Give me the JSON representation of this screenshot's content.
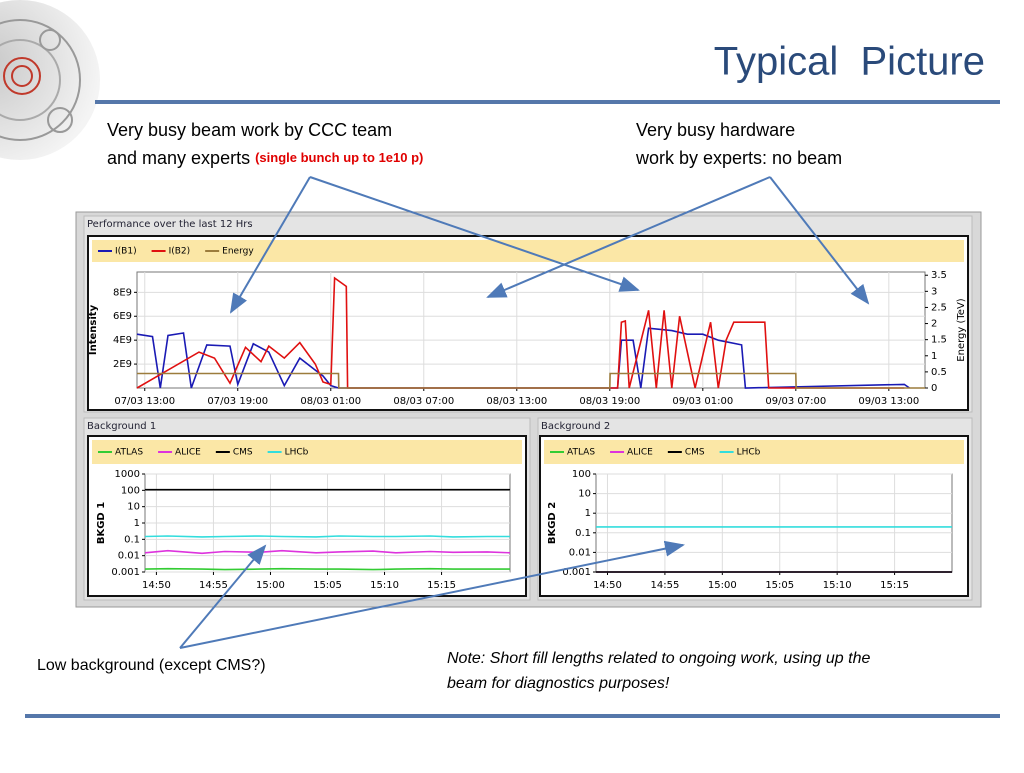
{
  "slide": {
    "title": "Typical  Picture",
    "annotation_left_line1": "Very busy beam work by CCC team",
    "annotation_left_line2": "and many experts ",
    "annotation_left_note": "(single bunch up to 1e10 p)",
    "annotation_right_line1": "Very busy hardware",
    "annotation_right_line2": "work by experts: no beam",
    "annotation_bottom": "Low background (except CMS?)",
    "note_line1": "Note: Short fill lengths related to ongoing work, using up the",
    "note_line2": "beam for diagnostics purposes!"
  },
  "chart_data": [
    {
      "type": "line",
      "title": "Performance over the last 12 Hrs",
      "y_label": "Intensity",
      "y2_label": "Energy (TeV)",
      "xlim": [
        "07/03 12:30",
        "09/03 15:20"
      ],
      "xticks": [
        "07/03 13:00",
        "07/03 19:00",
        "08/03 01:00",
        "08/03 07:00",
        "08/03 13:00",
        "08/03 19:00",
        "09/03 01:00",
        "09/03 07:00",
        "09/03 13:00"
      ],
      "ylim": [
        0,
        9700000000.0
      ],
      "yticks": [
        {
          "value": 2000000000.0,
          "label": "2E9"
        },
        {
          "value": 4000000000.0,
          "label": "4E9"
        },
        {
          "value": 6000000000.0,
          "label": "6E9"
        },
        {
          "value": 8000000000.0,
          "label": "8E9"
        }
      ],
      "y2lim": [
        0,
        3.6
      ],
      "y2ticks": [
        0,
        0.5,
        1,
        1.5,
        2,
        2.5,
        3,
        3.5
      ],
      "grid": true,
      "series": [
        {
          "name": "I(B1)",
          "color": "#1a1ab4",
          "x": [
            "07/03 12:30",
            "07/03 13:30",
            "07/03 14:00",
            "07/03 14:30",
            "07/03 15:30",
            "07/03 16:00",
            "07/03 17:00",
            "07/03 18:30",
            "07/03 19:00",
            "07/03 20:00",
            "07/03 21:00",
            "07/03 22:00",
            "07/03 23:00",
            "08/03 00:00",
            "08/03 00:30",
            "08/03 01:00",
            "08/03 01:30",
            "08/03 19:30",
            "08/03 19:45",
            "08/03 20:30",
            "08/03 21:00",
            "08/03 21:30",
            "08/03 23:00",
            "09/03 00:00",
            "09/03 01:00",
            "09/03 02:00",
            "09/03 03:30",
            "09/03 03:45",
            "09/03 14:00",
            "09/03 14:20"
          ],
          "values": [
            4500000000.0,
            4300000000.0,
            0,
            4400000000.0,
            4600000000.0,
            0,
            3600000000.0,
            3500000000.0,
            300000000.0,
            3700000000.0,
            3000000000.0,
            200000000.0,
            2500000000.0,
            1500000000.0,
            1000000000.0,
            200000000.0,
            0,
            0,
            4000000000.0,
            4000000000.0,
            0,
            5000000000.0,
            4800000000.0,
            4500000000.0,
            4500000000.0,
            4000000000.0,
            3600000000.0,
            0,
            300000000.0,
            0
          ]
        },
        {
          "name": "I(B2)",
          "color": "#e01010",
          "x": [
            "07/03 12:30",
            "07/03 16:30",
            "07/03 17:30",
            "07/03 18:30",
            "07/03 19:30",
            "07/03 20:30",
            "07/03 21:00",
            "07/03 22:00",
            "07/03 23:00",
            "08/03 00:00",
            "08/03 00:30",
            "08/03 01:00",
            "08/03 01:15",
            "08/03 02:00",
            "08/03 02:05",
            "08/03 19:30",
            "08/03 19:45",
            "08/03 20:00",
            "08/03 20:15",
            "08/03 21:30",
            "08/03 22:00",
            "08/03 22:30",
            "08/03 23:00",
            "08/03 23:30",
            "09/03 00:30",
            "09/03 01:30",
            "09/03 02:00",
            "09/03 02:30",
            "09/03 03:00",
            "09/03 05:00",
            "09/03 05:15",
            "09/03 14:00"
          ],
          "values": [
            0,
            3000000000.0,
            2500000000.0,
            400000000.0,
            3400000000.0,
            2200000000.0,
            3500000000.0,
            2500000000.0,
            3800000000.0,
            2000000000.0,
            500000000.0,
            300000000.0,
            9200000000.0,
            8500000000.0,
            0,
            0,
            5500000000.0,
            5600000000.0,
            0,
            6500000000.0,
            0,
            6500000000.0,
            0,
            6000000000.0,
            0,
            5500000000.0,
            0,
            4000000000.0,
            5500000000.0,
            5500000000.0,
            0,
            0
          ]
        },
        {
          "name": "Energy",
          "color": "#9c7c3c",
          "axis": "y2",
          "x": [
            "07/03 12:30",
            "08/03 01:30",
            "08/03 01:31",
            "08/03 19:00",
            "08/03 19:01",
            "09/03 07:00",
            "09/03 07:01",
            "09/03 15:20"
          ],
          "values": [
            0.45,
            0.45,
            0,
            0,
            0.45,
            0.45,
            0,
            0
          ]
        }
      ]
    },
    {
      "type": "line",
      "title": "Background 1",
      "y_label": "BKGD 1",
      "log_y": true,
      "xlim": [
        "14:49",
        "15:21"
      ],
      "xticks": [
        "14:50",
        "14:55",
        "15:00",
        "15:05",
        "15:10",
        "15:15"
      ],
      "ylim": [
        0.001,
        1000
      ],
      "yticks": [
        0.001,
        0.01,
        0.1,
        1,
        10,
        100,
        1000
      ],
      "grid": true,
      "x": [
        "14:49",
        "14:51",
        "14:54",
        "14:56",
        "14:59",
        "15:01",
        "15:04",
        "15:06",
        "15:09",
        "15:11",
        "15:14",
        "15:16",
        "15:19",
        "15:21"
      ],
      "series": [
        {
          "name": "ATLAS",
          "color": "#33cc33",
          "values": [
            0.0015,
            0.0016,
            0.0015,
            0.0014,
            0.0015,
            0.0016,
            0.0015,
            0.0015,
            0.0014,
            0.0015,
            0.0016,
            0.0015,
            0.0015,
            0.0015
          ]
        },
        {
          "name": "ALICE",
          "color": "#dd33dd",
          "values": [
            0.015,
            0.02,
            0.014,
            0.018,
            0.016,
            0.02,
            0.015,
            0.017,
            0.019,
            0.015,
            0.018,
            0.016,
            0.017,
            0.015
          ]
        },
        {
          "name": "CMS",
          "color": "#000000",
          "values": [
            110,
            110,
            110,
            110,
            110,
            110,
            110,
            110,
            110,
            110,
            110,
            110,
            110,
            110
          ]
        },
        {
          "name": "LHCb",
          "color": "#33dddd",
          "values": [
            0.15,
            0.16,
            0.14,
            0.15,
            0.16,
            0.15,
            0.14,
            0.16,
            0.15,
            0.15,
            0.16,
            0.14,
            0.15,
            0.15
          ]
        }
      ]
    },
    {
      "type": "line",
      "title": "Background 2",
      "y_label": "BKGD 2",
      "log_y": true,
      "xlim": [
        "14:49",
        "15:20"
      ],
      "xticks": [
        "14:50",
        "14:55",
        "15:00",
        "15:05",
        "15:10",
        "15:15"
      ],
      "ylim": [
        0.001,
        100
      ],
      "yticks": [
        0.001,
        0.01,
        0.1,
        1,
        10,
        100
      ],
      "grid": true,
      "x": [
        "14:49",
        "14:55",
        "15:00",
        "15:05",
        "15:10",
        "15:15",
        "15:20"
      ],
      "series": [
        {
          "name": "ATLAS",
          "color": "#33cc33",
          "values": [
            0.001,
            0.001,
            0.001,
            0.001,
            0.001,
            0.001,
            0.001
          ]
        },
        {
          "name": "ALICE",
          "color": "#dd33dd",
          "values": [
            0.001,
            0.001,
            0.001,
            0.001,
            0.001,
            0.001,
            0.001
          ]
        },
        {
          "name": "CMS",
          "color": "#000000",
          "values": [
            0.001,
            0.001,
            0.001,
            0.001,
            0.001,
            0.001,
            0.001
          ]
        },
        {
          "name": "LHCb",
          "color": "#33dddd",
          "values": [
            0.2,
            0.2,
            0.2,
            0.2,
            0.2,
            0.2,
            0.2
          ]
        }
      ]
    }
  ]
}
